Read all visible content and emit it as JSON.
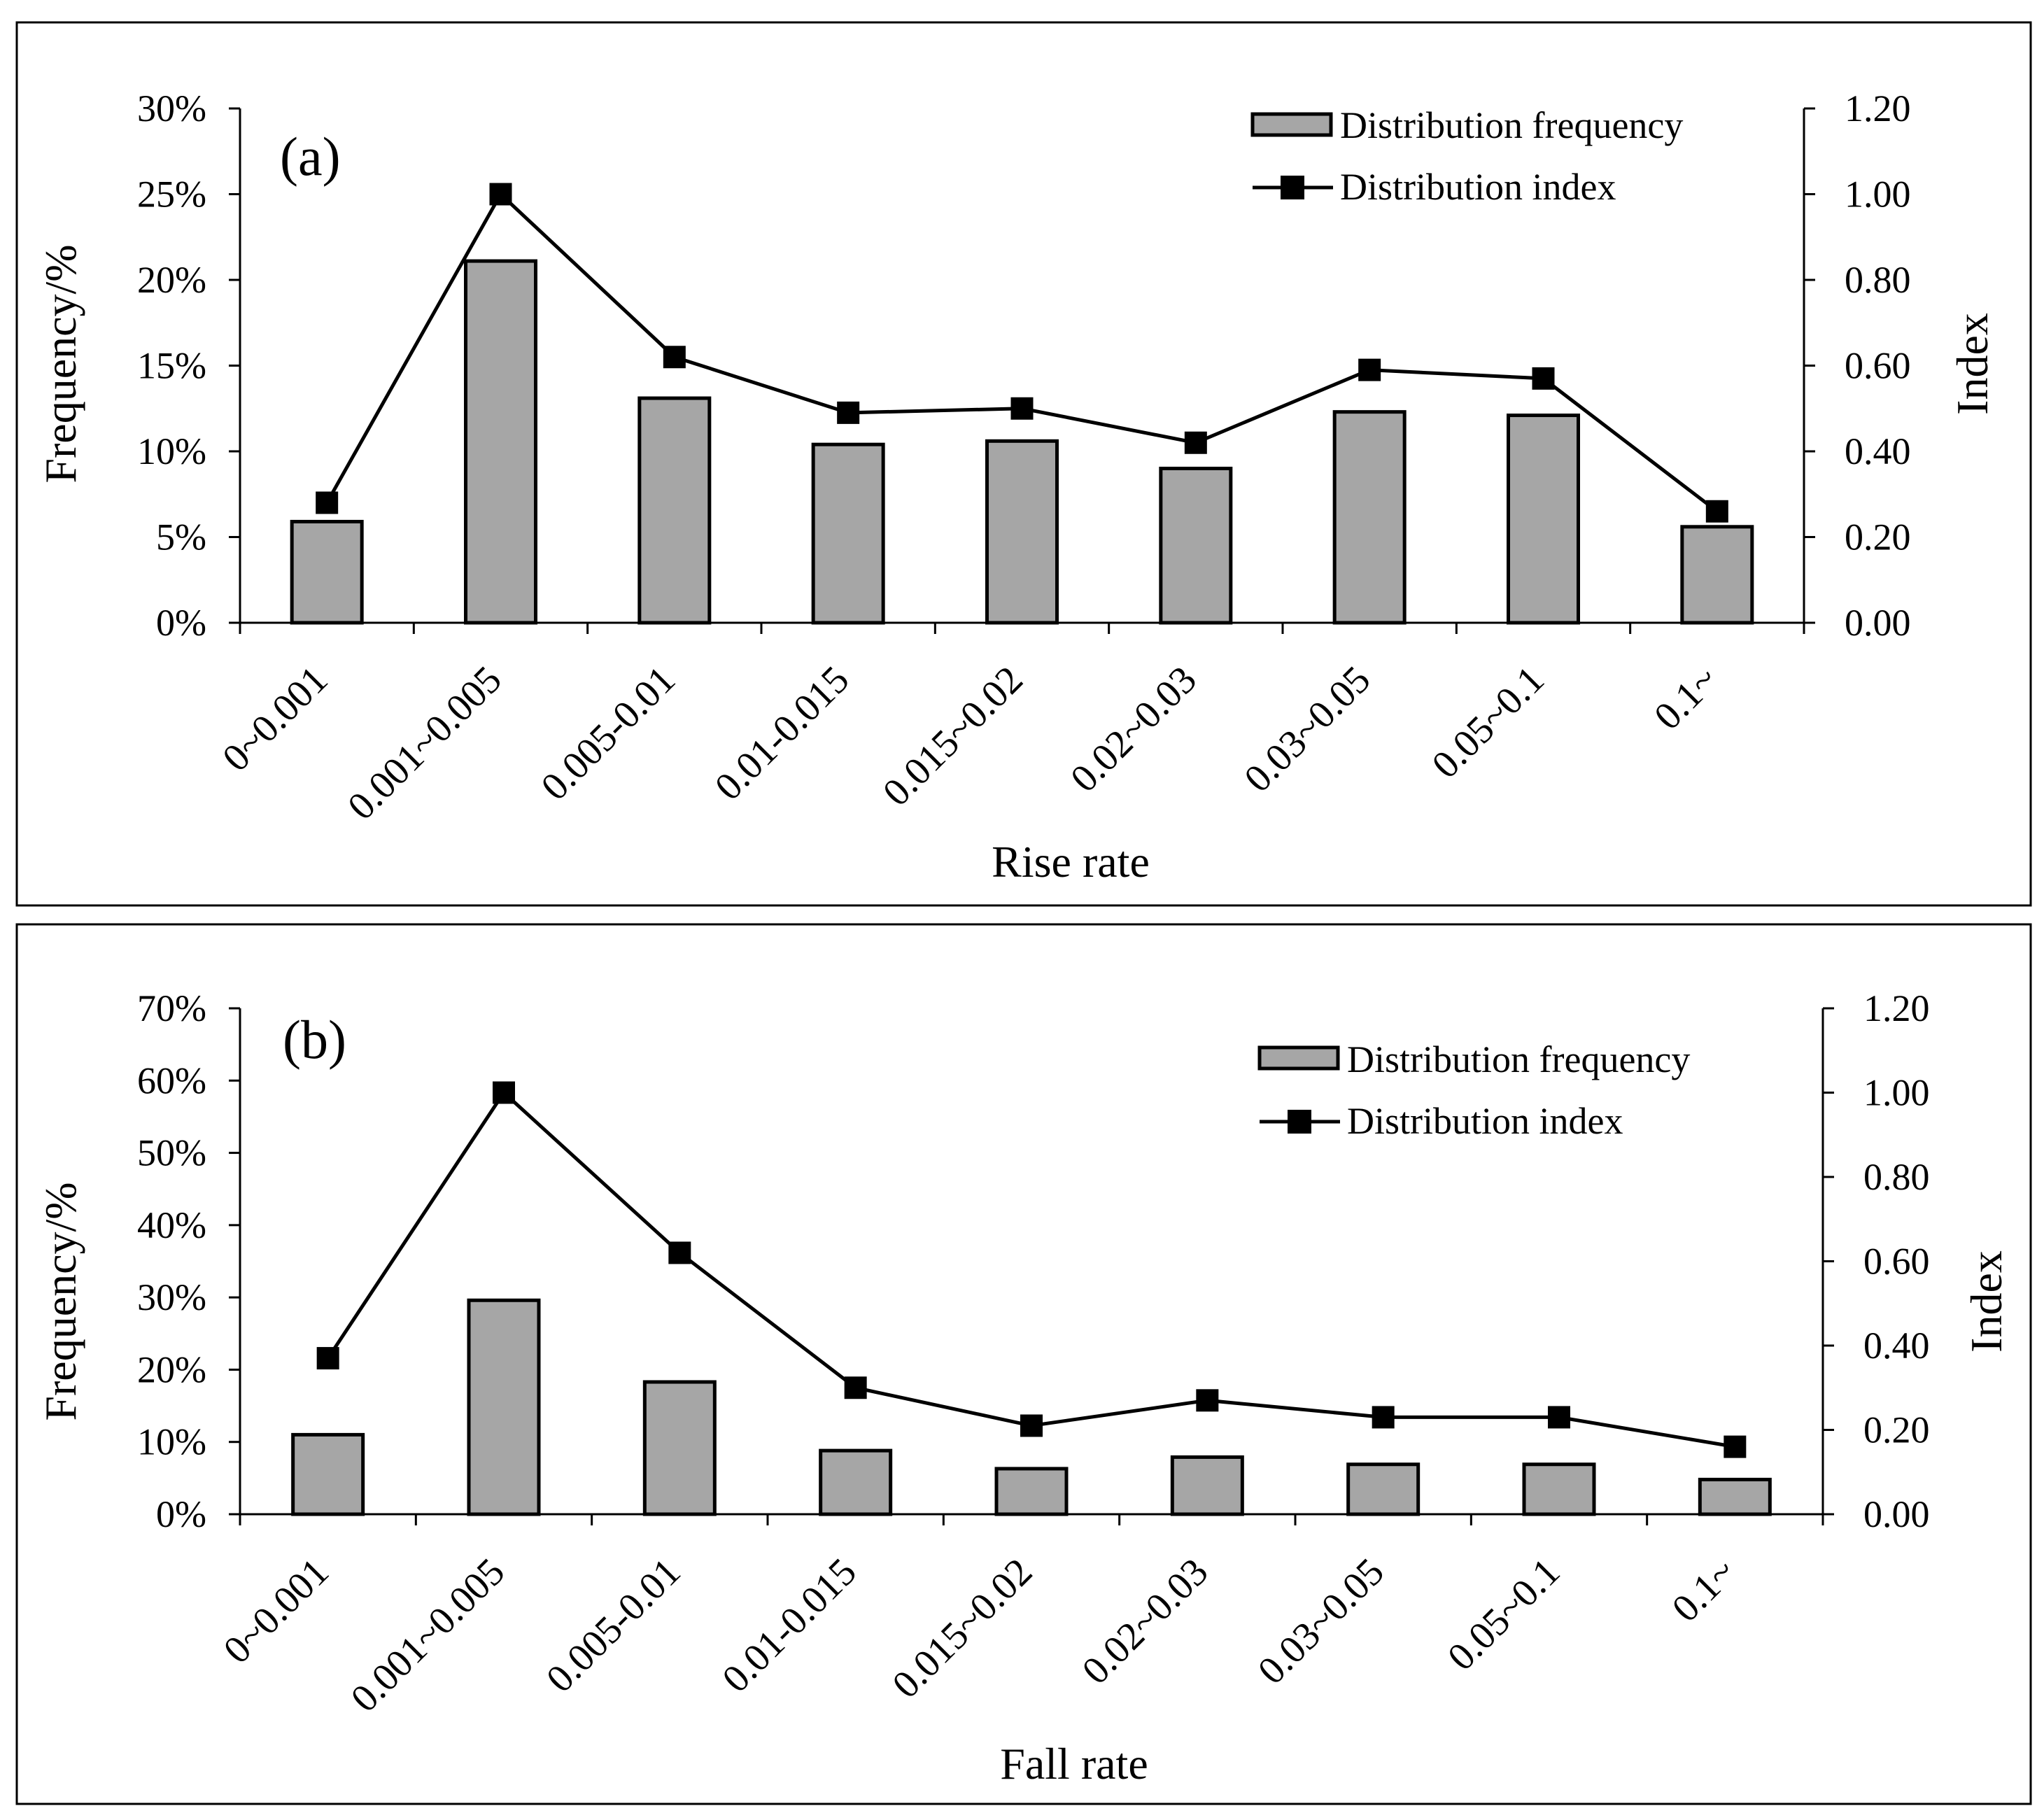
{
  "chart_data": [
    {
      "panel_label": "(a)",
      "type": "bar+line",
      "categories": [
        "0~0.001",
        "0.001~0.005",
        "0.005-0.01",
        "0.01-0.015",
        "0.015~0.02",
        "0.02~0.03",
        "0.03~0.05",
        "0.05~0.1",
        "0.1~"
      ],
      "series": [
        {
          "name": "Distribution frequency",
          "type": "bar",
          "axis": "left",
          "values": [
            5.9,
            21.1,
            13.1,
            10.4,
            10.6,
            9.0,
            12.3,
            12.1,
            5.6
          ]
        },
        {
          "name": "Distribution index",
          "type": "line",
          "axis": "right",
          "values": [
            0.28,
            1.0,
            0.62,
            0.49,
            0.5,
            0.42,
            0.59,
            0.57,
            0.26
          ]
        }
      ],
      "xlabel": "Rise rate",
      "ylabel": "Frequency/%",
      "y2label": "Index",
      "ylim": [
        0,
        30
      ],
      "ytick_values": [
        0,
        5,
        10,
        15,
        20,
        25,
        30
      ],
      "ytick_labels": [
        "0%",
        "5%",
        "10%",
        "15%",
        "20%",
        "25%",
        "30%"
      ],
      "y2lim": [
        0,
        1.2
      ],
      "y2tick_values": [
        0,
        0.2,
        0.4,
        0.6,
        0.8,
        1.0,
        1.2
      ],
      "y2tick_labels": [
        "0.00",
        "0.20",
        "0.40",
        "0.60",
        "0.80",
        "1.00",
        "1.20"
      ],
      "legend": [
        "Distribution frequency",
        "Distribution index"
      ],
      "legend_position": "top-right"
    },
    {
      "panel_label": "(b)",
      "type": "bar+line",
      "categories": [
        "0~0.001",
        "0.001~0.005",
        "0.005-0.01",
        "0.01-0.015",
        "0.015~0.02",
        "0.02~0.03",
        "0.03~0.05",
        "0.05~0.1",
        "0.1~"
      ],
      "series": [
        {
          "name": "Distribution frequency",
          "type": "bar",
          "axis": "left",
          "values": [
            11.0,
            29.6,
            18.3,
            8.8,
            6.3,
            7.9,
            6.9,
            6.9,
            4.8
          ]
        },
        {
          "name": "Distribution index",
          "type": "line",
          "axis": "right",
          "values": [
            0.37,
            1.0,
            0.62,
            0.3,
            0.21,
            0.27,
            0.23,
            0.23,
            0.16
          ]
        }
      ],
      "xlabel": "Fall rate",
      "ylabel": "Frequency/%",
      "y2label": "Index",
      "ylim": [
        0,
        70
      ],
      "ytick_values": [
        0,
        10,
        20,
        30,
        40,
        50,
        60,
        70
      ],
      "ytick_labels": [
        "0%",
        "10%",
        "20%",
        "30%",
        "40%",
        "50%",
        "60%",
        "70%"
      ],
      "y2lim": [
        0,
        1.2
      ],
      "y2tick_values": [
        0,
        0.2,
        0.4,
        0.6,
        0.8,
        1.0,
        1.2
      ],
      "y2tick_labels": [
        "0.00",
        "0.20",
        "0.40",
        "0.60",
        "0.80",
        "1.00",
        "1.20"
      ],
      "legend": [
        "Distribution frequency",
        "Distribution index"
      ],
      "legend_position": "top-right"
    }
  ],
  "colors": {
    "bar_fill": "#a6a6a6",
    "stroke": "#000000",
    "background": "#ffffff"
  }
}
